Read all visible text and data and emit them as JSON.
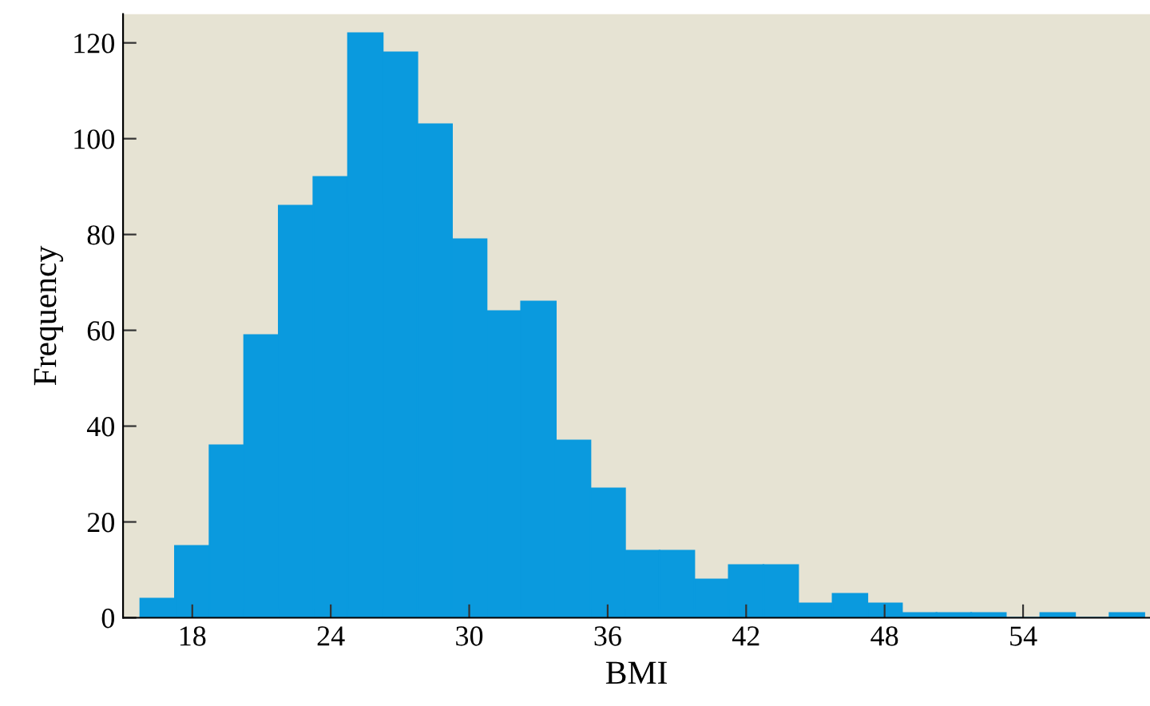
{
  "chart_data": {
    "type": "histogram",
    "xlabel": "BMI",
    "ylabel": "Frequency",
    "bins": [
      15.75,
      17.25,
      18.75,
      20.25,
      21.75,
      23.25,
      24.75,
      26.25,
      27.75,
      29.25,
      30.75,
      32.25,
      33.75,
      35.25,
      36.75,
      38.25,
      39.75,
      41.25,
      42.75,
      44.25,
      45.75,
      47.25,
      48.75,
      50.25,
      51.75,
      53.25,
      54.75,
      56.25,
      57.75,
      59.25
    ],
    "values": [
      4,
      15,
      36,
      59,
      86,
      92,
      122,
      118,
      103,
      79,
      64,
      66,
      37,
      27,
      14,
      14,
      8,
      11,
      11,
      3,
      5,
      3,
      1,
      1,
      1,
      0,
      1,
      0,
      1
    ],
    "color": "#0a9ade",
    "xlim": [
      15,
      59.5
    ],
    "xticks": [
      18,
      24,
      30,
      36,
      42,
      48,
      54
    ],
    "ylim": [
      0,
      126
    ],
    "yticks": [
      0,
      20,
      40,
      60,
      80,
      100,
      120
    ],
    "grid": false
  }
}
